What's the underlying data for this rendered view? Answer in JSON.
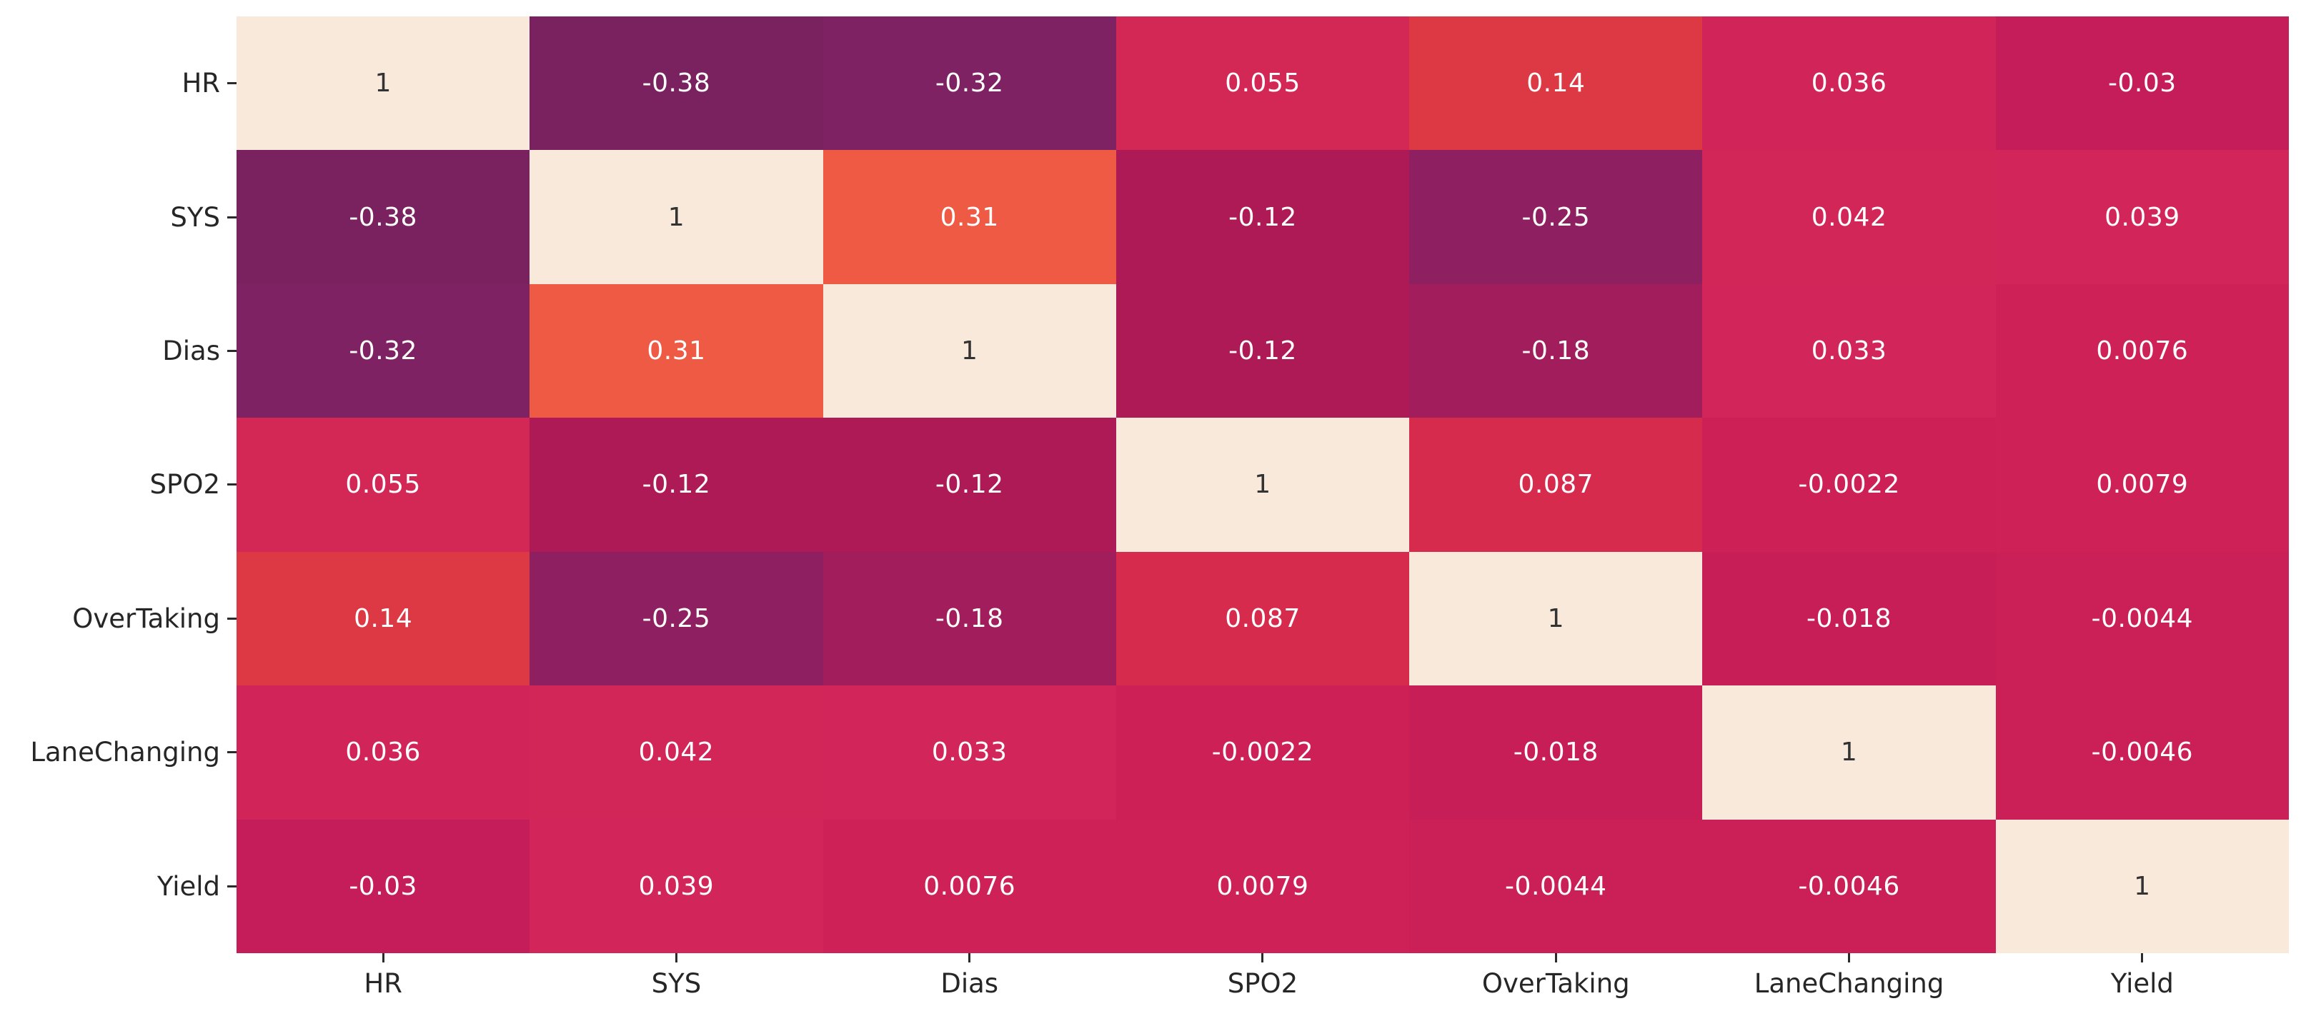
{
  "figure": {
    "background": "#ffffff",
    "kind": "seaborn-correlation-heatmap"
  },
  "chart_data": {
    "type": "heatmap",
    "title": "",
    "xlabel": "",
    "ylabel": "",
    "legend": "none",
    "colorbar": false,
    "colormap": "rocket",
    "vmin": -1,
    "vmax": 1,
    "variables": [
      "HR",
      "SYS",
      "Dias",
      "SPO2",
      "OverTaking",
      "LaneChanging",
      "Yield"
    ],
    "matrix_values": [
      [
        1,
        -0.38,
        -0.32,
        0.055,
        0.14,
        0.036,
        -0.03
      ],
      [
        -0.38,
        1,
        0.31,
        -0.12,
        -0.25,
        0.042,
        0.039
      ],
      [
        -0.32,
        0.31,
        1,
        -0.12,
        -0.18,
        0.033,
        0.0076
      ],
      [
        0.055,
        -0.12,
        -0.12,
        1,
        0.087,
        -0.0022,
        0.0079
      ],
      [
        0.14,
        -0.25,
        -0.18,
        0.087,
        1,
        -0.018,
        -0.0044
      ],
      [
        0.036,
        0.042,
        0.033,
        -0.0022,
        -0.018,
        1,
        -0.0046
      ],
      [
        -0.03,
        0.039,
        0.0076,
        0.0079,
        -0.0044,
        -0.0046,
        1
      ]
    ],
    "matrix_labels": [
      [
        "1",
        "-0.38",
        "-0.32",
        "0.055",
        "0.14",
        "0.036",
        "-0.03"
      ],
      [
        "-0.38",
        "1",
        "0.31",
        "-0.12",
        "-0.25",
        "0.042",
        "0.039"
      ],
      [
        "-0.32",
        "0.31",
        "1",
        "-0.12",
        "-0.18",
        "0.033",
        "0.0076"
      ],
      [
        "0.055",
        "-0.12",
        "-0.12",
        "1",
        "0.087",
        "-0.0022",
        "0.0079"
      ],
      [
        "0.14",
        "-0.25",
        "-0.18",
        "0.087",
        "1",
        "-0.018",
        "-0.0044"
      ],
      [
        "0.036",
        "0.042",
        "0.033",
        "-0.0022",
        "-0.018",
        "1",
        "-0.0046"
      ],
      [
        "-0.03",
        "0.039",
        "0.0076",
        "0.0079",
        "-0.0044",
        "-0.0046",
        "1"
      ]
    ],
    "cell_colors": [
      [
        "#f9e9db",
        "#7a2160",
        "#7f2263",
        "#d32755",
        "#dd3944",
        "#d12459",
        "#c51d59"
      ],
      [
        "#7a2160",
        "#f9e9db",
        "#ee5a43",
        "#ad1a56",
        "#8e2061",
        "#d22558",
        "#d22559"
      ],
      [
        "#7f2263",
        "#ee5a43",
        "#f9e9db",
        "#ad1a56",
        "#a11d5c",
        "#d22559",
        "#ce2157"
      ],
      [
        "#d32755",
        "#ad1a56",
        "#ad1a56",
        "#f9e9db",
        "#d72b4e",
        "#cc2057",
        "#ce2157"
      ],
      [
        "#dd3944",
        "#8e2061",
        "#a11d5c",
        "#d72b4e",
        "#f9e9db",
        "#c81e58",
        "#cb1f57"
      ],
      [
        "#d12459",
        "#d22558",
        "#d22559",
        "#cc2057",
        "#c81e58",
        "#f9e9db",
        "#cb1f57"
      ],
      [
        "#c51d59",
        "#d22559",
        "#ce2157",
        "#ce2157",
        "#cb1f57",
        "#cb1f57",
        "#f9e9db"
      ]
    ],
    "annotation_color_light": "#ffffff",
    "annotation_color_dark": "#333333",
    "axis_text_color": "#262626",
    "tick_color": "#2b2b2b"
  }
}
